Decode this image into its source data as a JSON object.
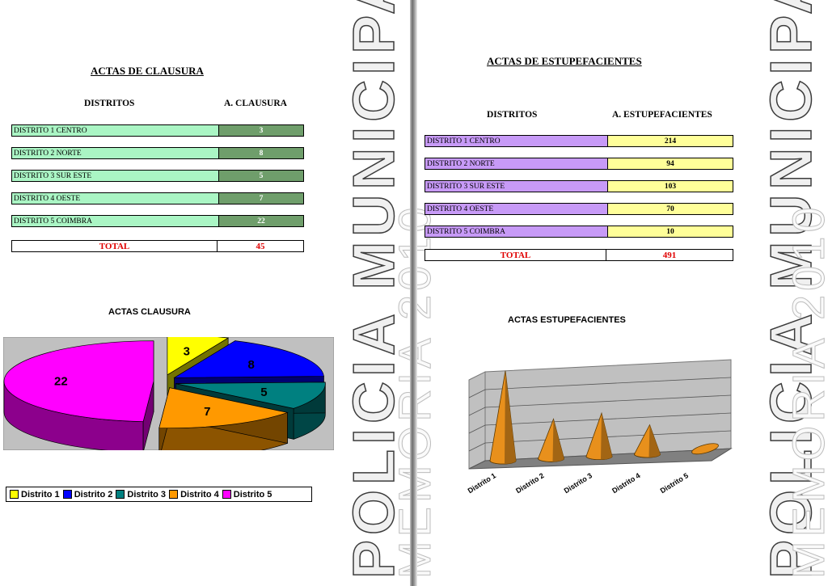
{
  "watermark": {
    "line1": "POLICIA MUNICIPAL",
    "line2": "MEMORIA 2010"
  },
  "left_table": {
    "title": "ACTAS DE CLAUSURA",
    "col1": "DISTRITOS",
    "col2": "A. CLAUSURA",
    "rows": [
      {
        "name": "DISTRITO 1 CENTRO",
        "value": "3"
      },
      {
        "name": "DISTRITO 2 NORTE",
        "value": "8"
      },
      {
        "name": "DISTRITO 3 SUR ESTE",
        "value": "5"
      },
      {
        "name": "DISTRITO 4 OESTE",
        "value": "7"
      },
      {
        "name": "DISTRITO 5 COIMBRA",
        "value": "22"
      }
    ],
    "total_label": "TOTAL",
    "total_value": "45"
  },
  "right_table": {
    "title": "ACTAS DE ESTUPEFACIENTES",
    "col1": "DISTRITOS",
    "col2": "A. ESTUPEFACIENTES",
    "rows": [
      {
        "name": "DISTRITO 1 CENTRO",
        "value": "214"
      },
      {
        "name": "DISTRITO 2 NORTE",
        "value": "94"
      },
      {
        "name": "DISTRITO 3 SUR ESTE",
        "value": "103"
      },
      {
        "name": "DISTRITO 4 OESTE",
        "value": "70"
      },
      {
        "name": "DISTRITO 5 COIMBRA",
        "value": "10"
      }
    ],
    "total_label": "TOTAL",
    "total_value": "491"
  },
  "chart_data": [
    {
      "type": "pie",
      "title": "ACTAS CLAUSURA",
      "categories": [
        "Distrito 1",
        "Distrito 2",
        "Distrito 3",
        "Distrito 4",
        "Distrito 5"
      ],
      "values": [
        3,
        8,
        5,
        7,
        22
      ],
      "colors": [
        "#ffff00",
        "#0000ff",
        "#008080",
        "#ff9900",
        "#ff00ff"
      ],
      "exploded": true,
      "three_d": true,
      "legend": "bottom",
      "background": "#c0c0c0"
    },
    {
      "type": "bar",
      "style": "3d-cone",
      "title": "ACTAS ESTUPEFACIENTES",
      "categories": [
        "Distrito 1",
        "Distrito 2",
        "Distrito 3",
        "Distrito 4",
        "Distrito 5"
      ],
      "values": [
        214,
        94,
        103,
        70,
        10
      ],
      "color": "#e8901c",
      "ylim": [
        0,
        250
      ],
      "grid": true,
      "wall_color": "#c0c0c0",
      "floor_color": "#808080"
    }
  ]
}
